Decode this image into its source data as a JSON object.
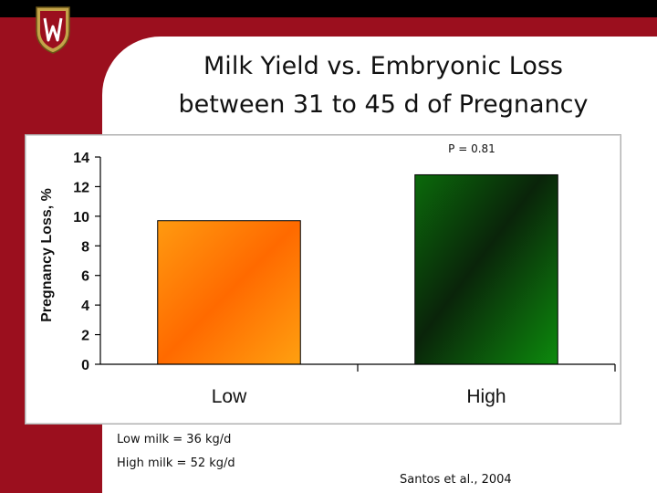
{
  "slide": {
    "title_lines": [
      "Milk Yield vs. Embryonic Loss",
      "between 31 to 45 d of Pregnancy"
    ],
    "notes": [
      "Low milk = 36 kg/d",
      "High milk = 52 kg/d"
    ],
    "citation": "Santos et al., 2004",
    "colors": {
      "band": "#9b0f1e",
      "top_bar": "#000000"
    }
  },
  "chart_data": {
    "type": "bar",
    "categories": [
      "Low",
      "High"
    ],
    "values": [
      9.7,
      12.8
    ],
    "ylabel": "Pregnancy Loss, %",
    "ylim": [
      0,
      14
    ],
    "yticks": [
      0,
      2,
      4,
      6,
      8,
      10,
      12,
      14
    ],
    "annotation": "P = 0.81",
    "grid": false,
    "legend": "none",
    "colors": [
      "#ff8a00",
      "#0f7a0f"
    ]
  }
}
